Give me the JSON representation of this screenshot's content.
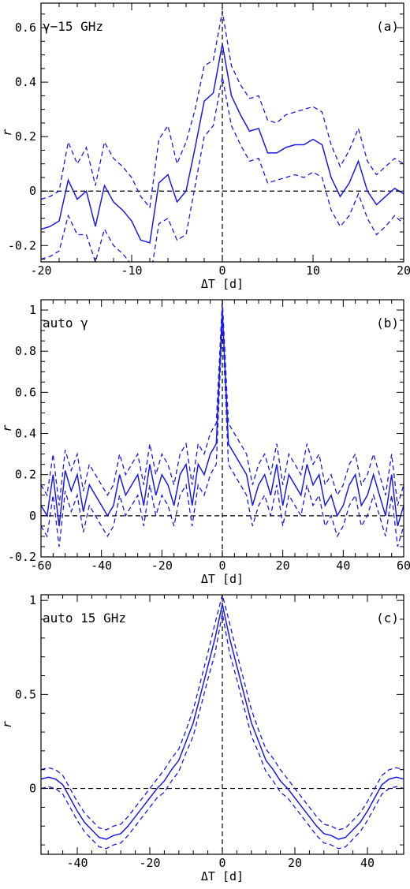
{
  "chart_data": [
    {
      "type": "line",
      "panel_label": "(a)",
      "annotation": "γ−15 GHz",
      "xlabel": "ΔT [d]",
      "ylabel": "r",
      "xlim": [
        -20,
        20
      ],
      "ylim": [
        -0.26,
        0.69
      ],
      "xticks": [
        -20,
        -10,
        0,
        10,
        20
      ],
      "yticks": [
        -0.2,
        0,
        0.2,
        0.4,
        0.6
      ],
      "ytick_labels": [
        "-0.2",
        "0",
        "0.2",
        "0.4",
        "0.6"
      ],
      "x": [
        -20,
        -19,
        -18,
        -17,
        -16,
        -15,
        -14,
        -13,
        -12,
        -11,
        -10,
        -9,
        -8,
        -7,
        -6,
        -5,
        -4,
        -3,
        -2,
        -1,
        0,
        1,
        2,
        3,
        4,
        5,
        6,
        7,
        8,
        9,
        10,
        11,
        12,
        13,
        14,
        15,
        16,
        17,
        18,
        19,
        20
      ],
      "series": [
        {
          "role": "main",
          "values": [
            -0.14,
            -0.13,
            -0.11,
            0.04,
            -0.03,
            0.0,
            -0.13,
            0.02,
            -0.04,
            -0.07,
            -0.11,
            -0.18,
            -0.19,
            0.03,
            0.06,
            -0.04,
            0.0,
            0.16,
            0.33,
            0.36,
            0.54,
            0.35,
            0.28,
            0.22,
            0.23,
            0.14,
            0.14,
            0.16,
            0.17,
            0.17,
            0.19,
            0.17,
            0.05,
            -0.02,
            0.03,
            0.11,
            0.0,
            -0.05,
            -0.02,
            0.01,
            -0.01
          ]
        },
        {
          "role": "upper",
          "values": [
            -0.03,
            -0.02,
            0.0,
            0.18,
            0.1,
            0.16,
            0.02,
            0.18,
            0.12,
            0.09,
            0.05,
            -0.02,
            -0.06,
            0.19,
            0.24,
            0.1,
            0.18,
            0.3,
            0.46,
            0.48,
            0.66,
            0.46,
            0.39,
            0.34,
            0.35,
            0.26,
            0.25,
            0.28,
            0.29,
            0.3,
            0.31,
            0.29,
            0.17,
            0.09,
            0.15,
            0.23,
            0.11,
            0.06,
            0.09,
            0.12,
            0.1
          ]
        },
        {
          "role": "lower",
          "values": [
            -0.25,
            -0.24,
            -0.22,
            -0.09,
            -0.16,
            -0.16,
            -0.26,
            -0.14,
            -0.2,
            -0.23,
            -0.27,
            -0.32,
            -0.33,
            -0.12,
            -0.1,
            -0.18,
            -0.16,
            0.02,
            0.2,
            0.24,
            0.42,
            0.24,
            0.17,
            0.11,
            0.12,
            0.03,
            0.04,
            0.05,
            0.06,
            0.05,
            0.07,
            0.05,
            -0.07,
            -0.13,
            -0.09,
            -0.01,
            -0.1,
            -0.16,
            -0.13,
            -0.09,
            -0.12
          ]
        }
      ],
      "hline": 0,
      "vline": 0
    },
    {
      "type": "line",
      "panel_label": "(b)",
      "annotation": "auto γ",
      "xlabel": "ΔT [d]",
      "ylabel": "r",
      "xlim": [
        -60,
        60
      ],
      "ylim": [
        -0.2,
        1.05
      ],
      "xticks": [
        -60,
        -40,
        -20,
        0,
        20,
        40,
        60
      ],
      "yticks": [
        -0.2,
        0,
        0.2,
        0.4,
        0.6,
        0.8,
        1
      ],
      "ytick_labels": [
        "-0.2",
        "0",
        "0.2",
        "0.4",
        "0.6",
        "0.8",
        "1"
      ],
      "x": [
        -60,
        -58,
        -56,
        -54,
        -52,
        -50,
        -48,
        -46,
        -44,
        -42,
        -40,
        -38,
        -36,
        -34,
        -32,
        -30,
        -28,
        -26,
        -24,
        -22,
        -20,
        -18,
        -16,
        -14,
        -12,
        -10,
        -8,
        -6,
        -4,
        -2,
        0,
        2,
        4,
        6,
        8,
        10,
        12,
        14,
        16,
        18,
        20,
        22,
        24,
        26,
        28,
        30,
        32,
        34,
        36,
        38,
        40,
        42,
        44,
        46,
        48,
        50,
        52,
        54,
        56,
        58,
        60
      ],
      "series": [
        {
          "role": "main",
          "values": [
            0.05,
            0.0,
            0.2,
            -0.05,
            0.22,
            0.12,
            0.2,
            0.02,
            0.15,
            0.1,
            0.05,
            0.0,
            0.05,
            0.2,
            0.1,
            0.15,
            0.2,
            0.05,
            0.25,
            0.1,
            0.2,
            0.15,
            0.05,
            0.2,
            0.25,
            0.05,
            0.25,
            0.2,
            0.3,
            0.35,
            1.0,
            0.35,
            0.3,
            0.25,
            0.2,
            0.05,
            0.15,
            0.2,
            0.1,
            0.25,
            0.05,
            0.2,
            0.15,
            0.1,
            0.25,
            0.15,
            0.2,
            0.05,
            0.1,
            0.0,
            0.05,
            0.15,
            0.2,
            0.05,
            0.1,
            0.2,
            0.1,
            0.0,
            0.2,
            -0.05,
            0.05
          ]
        },
        {
          "role": "upper",
          "values": [
            0.15,
            0.1,
            0.3,
            0.05,
            0.32,
            0.22,
            0.3,
            0.12,
            0.25,
            0.2,
            0.15,
            0.1,
            0.15,
            0.3,
            0.2,
            0.25,
            0.3,
            0.15,
            0.35,
            0.2,
            0.3,
            0.25,
            0.15,
            0.3,
            0.35,
            0.15,
            0.35,
            0.3,
            0.4,
            0.45,
            1.05,
            0.45,
            0.4,
            0.35,
            0.3,
            0.15,
            0.25,
            0.3,
            0.2,
            0.35,
            0.15,
            0.3,
            0.25,
            0.2,
            0.35,
            0.25,
            0.3,
            0.15,
            0.2,
            0.1,
            0.15,
            0.25,
            0.3,
            0.15,
            0.2,
            0.3,
            0.2,
            0.1,
            0.3,
            0.05,
            0.15
          ]
        },
        {
          "role": "lower",
          "values": [
            -0.05,
            -0.1,
            0.1,
            -0.15,
            0.12,
            0.02,
            0.1,
            -0.08,
            0.05,
            0.0,
            -0.05,
            -0.1,
            -0.05,
            0.1,
            0.0,
            0.05,
            0.1,
            -0.05,
            0.15,
            0.0,
            0.1,
            0.05,
            -0.05,
            0.1,
            0.15,
            -0.05,
            0.15,
            0.1,
            0.2,
            0.25,
            0.95,
            0.25,
            0.2,
            0.15,
            0.1,
            -0.05,
            0.05,
            0.1,
            0.0,
            0.15,
            -0.05,
            0.1,
            0.05,
            0.0,
            0.15,
            0.05,
            0.1,
            -0.05,
            0.0,
            -0.1,
            -0.05,
            0.05,
            0.1,
            -0.05,
            0.0,
            0.1,
            0.0,
            -0.1,
            0.1,
            -0.15,
            -0.05
          ]
        }
      ],
      "hline": 0,
      "vline": 0
    },
    {
      "type": "line",
      "panel_label": "(c)",
      "annotation": "auto 15 GHz",
      "xlabel": "ΔT [d]",
      "ylabel": "r",
      "xlim": [
        -50,
        50
      ],
      "ylim": [
        -0.35,
        1.03
      ],
      "xticks": [
        -40,
        -20,
        0,
        20,
        40
      ],
      "yticks": [
        0,
        0.5,
        1
      ],
      "ytick_labels": [
        "0",
        "0.5",
        "1"
      ],
      "x": [
        -50,
        -48,
        -46,
        -44,
        -42,
        -40,
        -38,
        -36,
        -34,
        -32,
        -30,
        -28,
        -26,
        -24,
        -22,
        -20,
        -18,
        -16,
        -14,
        -12,
        -10,
        -8,
        -6,
        -4,
        -2,
        0,
        2,
        4,
        6,
        8,
        10,
        12,
        14,
        16,
        18,
        20,
        22,
        24,
        26,
        28,
        30,
        32,
        34,
        36,
        38,
        40,
        42,
        44,
        46,
        48,
        50
      ],
      "series": [
        {
          "role": "main",
          "values": [
            0.05,
            0.06,
            0.05,
            0.02,
            -0.05,
            -0.12,
            -0.18,
            -0.22,
            -0.26,
            -0.27,
            -0.25,
            -0.24,
            -0.2,
            -0.15,
            -0.1,
            -0.05,
            0.0,
            0.04,
            0.1,
            0.15,
            0.25,
            0.35,
            0.5,
            0.65,
            0.8,
            0.98,
            0.8,
            0.65,
            0.5,
            0.35,
            0.25,
            0.15,
            0.1,
            0.04,
            0.0,
            -0.05,
            -0.1,
            -0.15,
            -0.2,
            -0.24,
            -0.25,
            -0.27,
            -0.26,
            -0.22,
            -0.18,
            -0.12,
            -0.05,
            0.02,
            0.05,
            0.06,
            0.05
          ]
        },
        {
          "role": "upper",
          "values": [
            0.1,
            0.11,
            0.1,
            0.07,
            0.0,
            -0.07,
            -0.13,
            -0.17,
            -0.21,
            -0.22,
            -0.2,
            -0.19,
            -0.15,
            -0.1,
            -0.05,
            0.0,
            0.05,
            0.1,
            0.16,
            0.21,
            0.31,
            0.42,
            0.57,
            0.72,
            0.88,
            1.03,
            0.88,
            0.72,
            0.57,
            0.42,
            0.31,
            0.21,
            0.16,
            0.1,
            0.05,
            0.0,
            -0.05,
            -0.1,
            -0.15,
            -0.19,
            -0.2,
            -0.22,
            -0.21,
            -0.17,
            -0.13,
            -0.07,
            0.0,
            0.07,
            0.1,
            0.11,
            0.1
          ]
        },
        {
          "role": "lower",
          "values": [
            0.0,
            0.01,
            0.0,
            -0.03,
            -0.1,
            -0.17,
            -0.23,
            -0.27,
            -0.31,
            -0.32,
            -0.3,
            -0.29,
            -0.25,
            -0.2,
            -0.15,
            -0.1,
            -0.05,
            -0.02,
            0.04,
            0.09,
            0.19,
            0.28,
            0.43,
            0.58,
            0.72,
            0.93,
            0.72,
            0.58,
            0.43,
            0.28,
            0.19,
            0.09,
            0.04,
            -0.02,
            -0.05,
            -0.1,
            -0.15,
            -0.2,
            -0.25,
            -0.29,
            -0.3,
            -0.32,
            -0.31,
            -0.27,
            -0.23,
            -0.17,
            -0.1,
            -0.03,
            0.0,
            0.01,
            0.0
          ]
        }
      ],
      "hline": 0,
      "vline": 0
    }
  ],
  "colors": {
    "series": "#1a1ae6",
    "axes": "#000000",
    "background": "#ffffff"
  }
}
